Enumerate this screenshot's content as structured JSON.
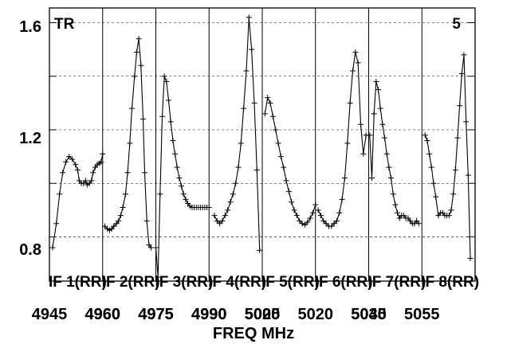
{
  "chart_data": {
    "type": "line",
    "xlabel": "FREQ MHz",
    "ylabel": "",
    "ylim": [
      0.635,
      1.655
    ],
    "yticks": [
      "0.8",
      "1.2",
      "1.6"
    ],
    "corner_left": "TR",
    "corner_right": "5",
    "grid": true,
    "marker": "plus",
    "panels": [
      {
        "label": "IF 1(RR)",
        "x_start": 4945,
        "x_ticks": [
          "4945",
          "4960"
        ],
        "points": [
          [
            0.06,
            0.76
          ],
          [
            0.13,
            0.85
          ],
          [
            0.19,
            0.96
          ],
          [
            0.25,
            1.04
          ],
          [
            0.31,
            1.08
          ],
          [
            0.37,
            1.1
          ],
          [
            0.43,
            1.09
          ],
          [
            0.49,
            1.07
          ],
          [
            0.53,
            1.05
          ],
          [
            0.56,
            1.01
          ],
          [
            0.6,
            1.0
          ],
          [
            0.64,
            1.0
          ],
          [
            0.68,
            1.01
          ],
          [
            0.71,
            0.995
          ],
          [
            0.75,
            1.0
          ],
          [
            0.79,
            1.01
          ],
          [
            0.82,
            1.04
          ],
          [
            0.86,
            1.06
          ],
          [
            0.9,
            1.07
          ],
          [
            0.94,
            1.075
          ],
          [
            0.97,
            1.08
          ],
          [
            1.0,
            1.11
          ]
        ]
      },
      {
        "label": "IF 2(RR)",
        "x_start": 4960,
        "x_ticks": [
          "4960",
          "4975"
        ],
        "points": [
          [
            0.04,
            0.84
          ],
          [
            0.09,
            0.83
          ],
          [
            0.13,
            0.825
          ],
          [
            0.17,
            0.83
          ],
          [
            0.21,
            0.84
          ],
          [
            0.26,
            0.85
          ],
          [
            0.3,
            0.86
          ],
          [
            0.34,
            0.88
          ],
          [
            0.38,
            0.91
          ],
          [
            0.43,
            0.96
          ],
          [
            0.47,
            1.04
          ],
          [
            0.51,
            1.15
          ],
          [
            0.55,
            1.28
          ],
          [
            0.6,
            1.4
          ],
          [
            0.64,
            1.49
          ],
          [
            0.68,
            1.54
          ],
          [
            0.72,
            1.44
          ],
          [
            0.76,
            1.24
          ],
          [
            0.79,
            1.04
          ],
          [
            0.83,
            0.86
          ],
          [
            0.87,
            0.77
          ],
          [
            0.91,
            0.76
          ]
        ]
      },
      {
        "label": "IF 3(RR)",
        "x_start": 4975,
        "x_ticks": [
          "4975",
          "4990"
        ],
        "points": [
          [
            0.0,
            0.76
          ],
          [
            0.04,
            0.65
          ],
          [
            0.08,
            0.96
          ],
          [
            0.12,
            1.25
          ],
          [
            0.16,
            1.4
          ],
          [
            0.2,
            1.38
          ],
          [
            0.24,
            1.31
          ],
          [
            0.28,
            1.23
          ],
          [
            0.32,
            1.16
          ],
          [
            0.36,
            1.11
          ],
          [
            0.4,
            1.06
          ],
          [
            0.44,
            1.02
          ],
          [
            0.48,
            0.99
          ],
          [
            0.52,
            0.96
          ],
          [
            0.56,
            0.94
          ],
          [
            0.6,
            0.925
          ],
          [
            0.64,
            0.915
          ],
          [
            0.68,
            0.91
          ],
          [
            0.72,
            0.91
          ],
          [
            0.76,
            0.91
          ],
          [
            0.8,
            0.91
          ],
          [
            0.84,
            0.91
          ],
          [
            0.88,
            0.91
          ],
          [
            0.92,
            0.91
          ],
          [
            0.96,
            0.91
          ],
          [
            1.0,
            0.91
          ]
        ]
      },
      {
        "label": "IF 4(RR)",
        "x_start": 4990,
        "x_ticks": [
          "4990",
          "5005"
        ],
        "points": [
          [
            0.1,
            0.88
          ],
          [
            0.15,
            0.86
          ],
          [
            0.2,
            0.85
          ],
          [
            0.25,
            0.86
          ],
          [
            0.3,
            0.88
          ],
          [
            0.35,
            0.9
          ],
          [
            0.4,
            0.93
          ],
          [
            0.45,
            0.96
          ],
          [
            0.5,
            1.0
          ],
          [
            0.55,
            1.06
          ],
          [
            0.6,
            1.15
          ],
          [
            0.65,
            1.28
          ],
          [
            0.7,
            1.42
          ],
          [
            0.75,
            1.62
          ],
          [
            0.8,
            1.5
          ],
          [
            0.85,
            1.3
          ],
          [
            0.9,
            1.05
          ],
          [
            0.95,
            0.75
          ]
        ]
      },
      {
        "label": "IF 5(RR)",
        "x_start": 5005,
        "x_ticks": [
          "5020"
        ],
        "points": [
          [
            0.05,
            1.26
          ],
          [
            0.1,
            1.32
          ],
          [
            0.15,
            1.3
          ],
          [
            0.2,
            1.25
          ],
          [
            0.25,
            1.2
          ],
          [
            0.3,
            1.15
          ],
          [
            0.35,
            1.1
          ],
          [
            0.4,
            1.06
          ],
          [
            0.45,
            1.01
          ],
          [
            0.5,
            0.97
          ],
          [
            0.55,
            0.93
          ],
          [
            0.6,
            0.9
          ],
          [
            0.65,
            0.88
          ],
          [
            0.7,
            0.86
          ],
          [
            0.75,
            0.85
          ],
          [
            0.8,
            0.845
          ],
          [
            0.85,
            0.855
          ],
          [
            0.9,
            0.87
          ],
          [
            0.95,
            0.89
          ],
          [
            1.0,
            0.92
          ]
        ]
      },
      {
        "label": "IF 6(RR)",
        "x_start": 5020,
        "x_ticks": [
          "5020",
          "5035"
        ],
        "points": [
          [
            0.05,
            0.9
          ],
          [
            0.1,
            0.88
          ],
          [
            0.15,
            0.86
          ],
          [
            0.2,
            0.85
          ],
          [
            0.25,
            0.84
          ],
          [
            0.3,
            0.84
          ],
          [
            0.35,
            0.85
          ],
          [
            0.4,
            0.86
          ],
          [
            0.45,
            0.89
          ],
          [
            0.5,
            0.94
          ],
          [
            0.55,
            1.02
          ],
          [
            0.6,
            1.15
          ],
          [
            0.65,
            1.3
          ],
          [
            0.7,
            1.42
          ],
          [
            0.75,
            1.49
          ],
          [
            0.8,
            1.45
          ],
          [
            0.85,
            1.22
          ],
          [
            0.9,
            1.11
          ],
          [
            0.95,
            1.18
          ]
        ]
      },
      {
        "label": "IF 7(RR)",
        "x_start": 5035,
        "x_ticks": [
          "5040",
          "5055"
        ],
        "points": [
          [
            0.02,
            1.18
          ],
          [
            0.06,
            1.02
          ],
          [
            0.1,
            1.26
          ],
          [
            0.14,
            1.38
          ],
          [
            0.18,
            1.35
          ],
          [
            0.22,
            1.28
          ],
          [
            0.26,
            1.22
          ],
          [
            0.3,
            1.17
          ],
          [
            0.34,
            1.11
          ],
          [
            0.38,
            1.06
          ],
          [
            0.42,
            1.02
          ],
          [
            0.46,
            0.96
          ],
          [
            0.5,
            0.92
          ],
          [
            0.54,
            0.89
          ],
          [
            0.58,
            0.87
          ],
          [
            0.62,
            0.88
          ],
          [
            0.66,
            0.88
          ],
          [
            0.7,
            0.87
          ],
          [
            0.74,
            0.87
          ],
          [
            0.78,
            0.86
          ],
          [
            0.82,
            0.85
          ],
          [
            0.86,
            0.85
          ],
          [
            0.9,
            0.86
          ],
          [
            0.94,
            0.85
          ]
        ]
      },
      {
        "label": "IF 8(RR)",
        "x_start": 5050,
        "x_ticks": [],
        "points": [
          [
            0.06,
            1.18
          ],
          [
            0.1,
            1.16
          ],
          [
            0.14,
            1.11
          ],
          [
            0.18,
            1.06
          ],
          [
            0.22,
            1.0
          ],
          [
            0.26,
            0.95
          ],
          [
            0.31,
            0.88
          ],
          [
            0.35,
            0.89
          ],
          [
            0.39,
            0.89
          ],
          [
            0.43,
            0.88
          ],
          [
            0.47,
            0.88
          ],
          [
            0.51,
            0.88
          ],
          [
            0.55,
            0.9
          ],
          [
            0.59,
            0.96
          ],
          [
            0.63,
            1.05
          ],
          [
            0.67,
            1.17
          ],
          [
            0.71,
            1.29
          ],
          [
            0.75,
            1.41
          ],
          [
            0.79,
            1.48
          ],
          [
            0.83,
            1.23
          ],
          [
            0.87,
            1.03
          ],
          [
            0.91,
            0.72
          ]
        ]
      }
    ]
  }
}
